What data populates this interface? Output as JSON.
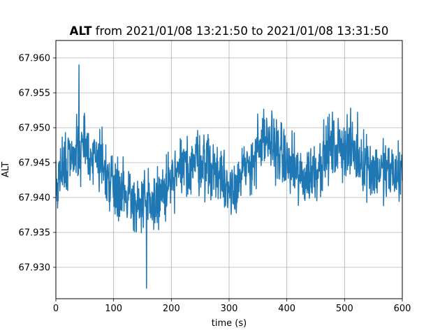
{
  "chart_data": {
    "type": "line",
    "title": {
      "variable": "ALT",
      "rest": " from 2021/01/08 13:21:50 to 2021/01/08 13:31:50"
    },
    "xlabel": "time (s)",
    "ylabel": "ALT",
    "xlim": [
      0,
      600
    ],
    "ylim": [
      67.9255,
      67.9625
    ],
    "xticks": [
      0,
      100,
      200,
      300,
      400,
      500,
      600
    ],
    "xtick_labels": [
      "0",
      "100",
      "200",
      "300",
      "400",
      "500",
      "600"
    ],
    "yticks": [
      67.93,
      67.935,
      67.94,
      67.945,
      67.95,
      67.955,
      67.96
    ],
    "ytick_labels": [
      "67.930",
      "67.935",
      "67.940",
      "67.945",
      "67.950",
      "67.955",
      "67.960"
    ],
    "grid": true,
    "line_color": "#1f77b4",
    "series": [
      {
        "trend_x": [
          0,
          25,
          50,
          75,
          100,
          125,
          150,
          175,
          200,
          225,
          250,
          275,
          300,
          325,
          350,
          375,
          400,
          425,
          450,
          475,
          500,
          525,
          550,
          575,
          600
        ],
        "trend_y": [
          67.9425,
          67.946,
          67.947,
          67.9455,
          67.942,
          67.9405,
          67.9385,
          67.9395,
          67.942,
          67.9445,
          67.9455,
          67.944,
          67.9415,
          67.943,
          67.947,
          67.948,
          67.945,
          67.9425,
          67.944,
          67.947,
          67.9475,
          67.946,
          67.944,
          67.9435,
          67.9435
        ],
        "noise_amplitude": 0.0045,
        "min": {
          "x": 157,
          "y": 67.927
        },
        "max": {
          "x": 40,
          "y": 67.959
        }
      }
    ]
  }
}
